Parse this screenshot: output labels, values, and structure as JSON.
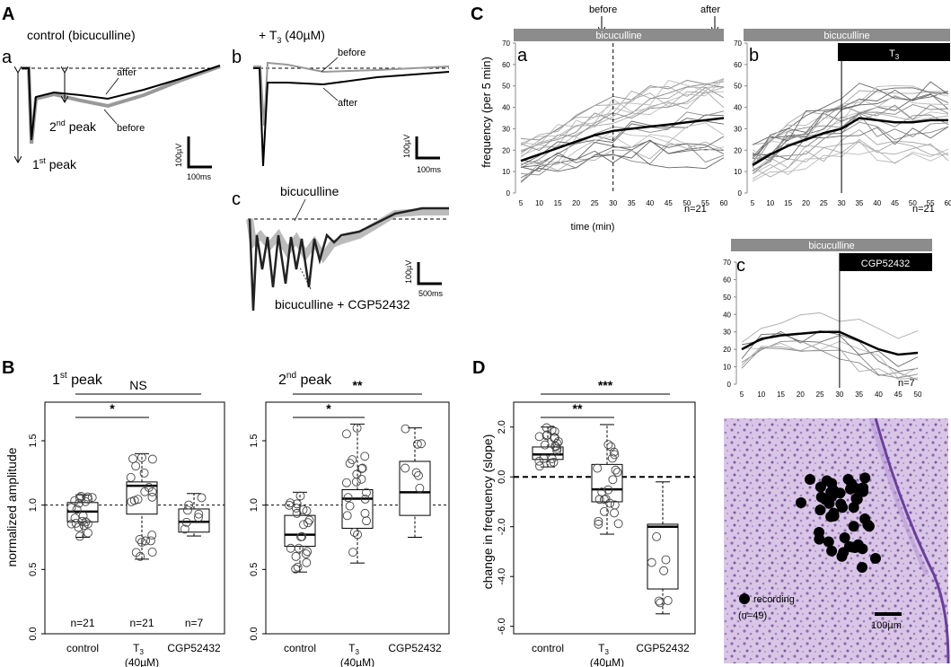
{
  "panels": {
    "A": "A",
    "B": "B",
    "C": "C",
    "D": "D",
    "Aa": "a",
    "Ab": "b",
    "Ac": "c",
    "Ca": "a",
    "Cb": "b",
    "Cc": "c"
  },
  "panel_A": {
    "a_title": "control (bicuculline)",
    "b_title_prefix": "+ T",
    "b_title_sub": "3",
    "b_title_suffix": " (40µM)",
    "after": "after",
    "before": "before",
    "second_peak_prefix": "2",
    "second_peak_sup": "nd",
    "second_peak_suffix": " peak",
    "first_peak_prefix": "1",
    "first_peak_sup": "st",
    "first_peak_suffix": " peak",
    "scale_a_v": "100µV",
    "scale_a_t": "100ms",
    "scale_b_v": "100µV",
    "scale_b_t": "100ms",
    "c_bicuculline": "bicuculline",
    "c_cgp": "bicuculline + CGP52432",
    "scale_c_v": "100µV",
    "scale_c_t": "500ms"
  },
  "panel_C": {
    "before_arrow": "before",
    "after_arrow": "after",
    "bicuculline": "bicuculline",
    "T3_label": "T",
    "T3_sub": "3",
    "cgp_label": "CGP52432",
    "ylabel": "frequency (per 5 min)",
    "xlabel": "time (min)",
    "n_a": "n=21",
    "n_b": "n=21",
    "n_c": "n=7"
  },
  "panel_B1_title_prefix": "1",
  "panel_B1_title_sup": "st",
  "panel_B1_title_suffix": " peak",
  "panel_B2_title_prefix": "2",
  "panel_B2_title_sup": "nd",
  "panel_B2_title_suffix": " peak",
  "panel_B_ylabel": "normalized amplitude",
  "panel_D_ylabel": "change in frequency (slope)",
  "cat_labels": {
    "control": "control",
    "T3": "T",
    "T3sub": "3",
    "T3conc": "(40µM)",
    "cgp": "CGP52432"
  },
  "signif": {
    "ns": "NS",
    "one": "*",
    "two": "**",
    "three": "***"
  },
  "histology": {
    "legend": "recording",
    "n": "(n=49)",
    "scale": "100µm"
  },
  "chart_data": [
    {
      "id": "C-a",
      "type": "line",
      "title": "bicuculline",
      "xlabel": "time (min)",
      "ylabel": "frequency (per 5 min)",
      "x": [
        5,
        10,
        15,
        20,
        25,
        30,
        35,
        40,
        45,
        50,
        55,
        60
      ],
      "xticks": [
        "5",
        "10",
        "15",
        "20",
        "25",
        "30",
        "35",
        "40",
        "45",
        "50",
        "55",
        "60"
      ],
      "yticks": [
        "0",
        "10",
        "20",
        "30",
        "40",
        "50",
        "60",
        "70"
      ],
      "ylim": [
        0,
        70
      ],
      "mean": [
        15,
        18,
        21,
        24,
        27,
        29,
        30,
        31,
        32,
        33,
        34,
        35
      ],
      "note": "n=21 individual traces in grey, mean in bold black"
    },
    {
      "id": "C-b",
      "type": "line",
      "title": "bicuculline / T3",
      "x": [
        5,
        10,
        15,
        20,
        25,
        30,
        35,
        40,
        45,
        50,
        55,
        60
      ],
      "xticks": [
        "5",
        "10",
        "15",
        "20",
        "25",
        "30",
        "35",
        "40",
        "45",
        "50",
        "55",
        "60"
      ],
      "yticks": [
        "0",
        "10",
        "20",
        "30",
        "40",
        "50",
        "60",
        "70"
      ],
      "ylim": [
        0,
        70
      ],
      "mean": [
        13,
        18,
        22,
        25,
        28,
        30,
        35,
        34,
        33,
        33,
        34,
        34
      ],
      "note": "n=21"
    },
    {
      "id": "C-c",
      "type": "line",
      "title": "bicuculline / CGP52432",
      "x": [
        5,
        10,
        15,
        20,
        25,
        30,
        35,
        40,
        45,
        50
      ],
      "xticks": [
        "5",
        "10",
        "15",
        "20",
        "25",
        "30",
        "35",
        "40",
        "45",
        "50"
      ],
      "yticks": [
        "0",
        "10",
        "20",
        "30",
        "40",
        "50",
        "60",
        "70"
      ],
      "ylim": [
        0,
        70
      ],
      "mean": [
        20,
        26,
        28,
        29,
        30,
        30,
        25,
        20,
        17,
        18
      ],
      "note": "n=7"
    },
    {
      "id": "B-1st",
      "type": "box",
      "title": "1st peak",
      "ylabel": "normalized amplitude",
      "ylim": [
        0,
        1.8
      ],
      "yticks": [
        "0.0",
        "0.5",
        "1.0",
        "1.5"
      ],
      "categories": [
        "control",
        "T3 (40µM)",
        "CGP52432"
      ],
      "boxes": [
        {
          "q1": 0.87,
          "median": 0.95,
          "q3": 1.02,
          "lo": 0.75,
          "hi": 1.08
        },
        {
          "q1": 0.93,
          "median": 1.15,
          "q3": 1.18,
          "lo": 0.58,
          "hi": 1.4
        },
        {
          "q1": 0.79,
          "median": 0.87,
          "q3": 0.97,
          "lo": 0.76,
          "hi": 1.09
        }
      ],
      "n": [
        "n=21",
        "n=21",
        "n=7"
      ],
      "significance": [
        {
          "pair": "control-T3",
          "label": "*"
        },
        {
          "pair": "control-CGP52432",
          "label": "NS"
        }
      ]
    },
    {
      "id": "B-2nd",
      "type": "box",
      "title": "2nd peak",
      "ylim": [
        0,
        1.8
      ],
      "yticks": [
        "0.0",
        "0.5",
        "1.0",
        "1.5"
      ],
      "categories": [
        "control",
        "T3 (40µM)",
        "CGP52432"
      ],
      "boxes": [
        {
          "q1": 0.68,
          "median": 0.77,
          "q3": 0.92,
          "lo": 0.48,
          "hi": 1.1
        },
        {
          "q1": 0.82,
          "median": 1.05,
          "q3": 1.12,
          "lo": 0.55,
          "hi": 1.63
        },
        {
          "q1": 0.92,
          "median": 1.1,
          "q3": 1.34,
          "lo": 0.75,
          "hi": 1.6
        }
      ],
      "significance": [
        {
          "pair": "control-T3",
          "label": "*"
        },
        {
          "pair": "control-CGP52432",
          "label": "**"
        }
      ]
    },
    {
      "id": "D",
      "type": "box",
      "ylabel": "change in frequency (slope)",
      "ylim": [
        -6.3,
        3.0
      ],
      "yticks": [
        "-6.0",
        "-4.0",
        "-2.0",
        "0.0",
        "2.0"
      ],
      "categories": [
        "control",
        "T3 (40µM)",
        "CGP52432"
      ],
      "boxes": [
        {
          "q1": 0.7,
          "median": 0.9,
          "q3": 1.2,
          "lo": 0.4,
          "hi": 2.0
        },
        {
          "q1": -1.0,
          "median": -0.5,
          "q3": 0.5,
          "lo": -2.3,
          "hi": 2.1
        },
        {
          "q1": -4.5,
          "median": -2.0,
          "q3": -1.9,
          "lo": -5.5,
          "hi": -0.2
        }
      ],
      "significance": [
        {
          "pair": "control-T3",
          "label": "**"
        },
        {
          "pair": "control-CGP52432",
          "label": "***"
        }
      ]
    }
  ]
}
